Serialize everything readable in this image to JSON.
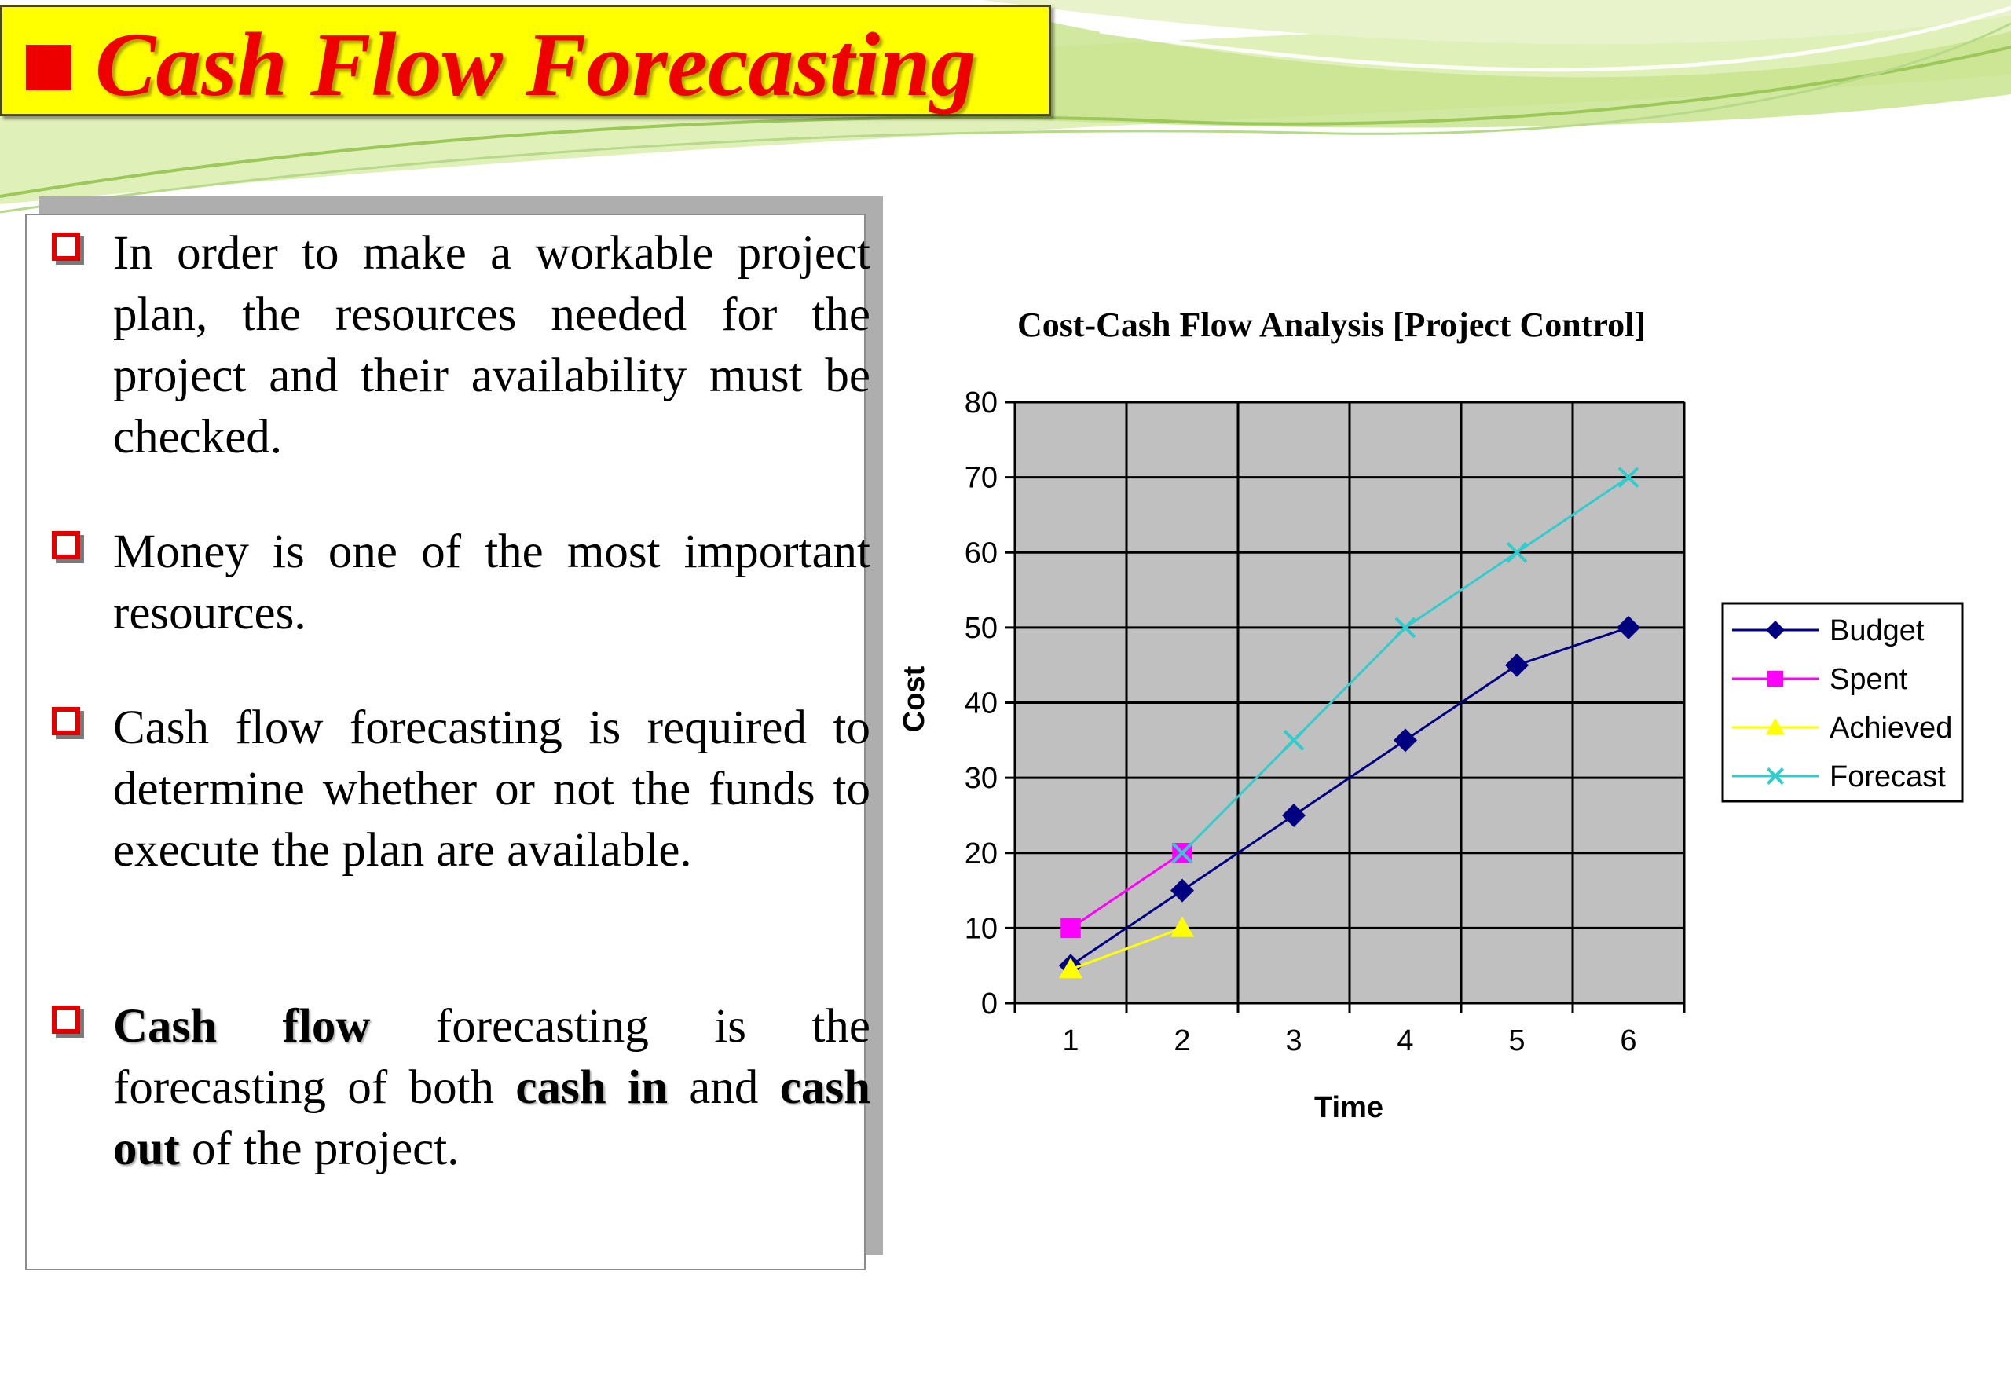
{
  "slide": {
    "title": "Cash Flow Forecasting",
    "bullets": [
      {
        "parts": [
          {
            "t": "In order to make a workable project plan, the resources needed for the project and their availability must be checked.",
            "b": false
          }
        ]
      },
      {
        "parts": [
          {
            "t": "Money is one of the most important resources.",
            "b": false
          }
        ]
      },
      {
        "parts": [
          {
            "t": "Cash flow forecasting is required to determine whether or not the funds to execute the plan are available.",
            "b": false
          }
        ]
      },
      {
        "parts": [
          {
            "t": "Cash flow",
            "b": true
          },
          {
            "t": " forecasting is the forecasting of both ",
            "b": false
          },
          {
            "t": "cash in",
            "b": true
          },
          {
            "t": " and ",
            "b": false
          },
          {
            "t": "cash out",
            "b": true
          },
          {
            "t": " of the project.",
            "b": false
          }
        ]
      }
    ]
  },
  "colors": {
    "title_background": "#ffff00",
    "title_text": "#ee0000",
    "bullet_marker": "#e00000",
    "plot_background": "#c0c0c0"
  },
  "chart_data": {
    "type": "line",
    "title": "Cost-Cash Flow Analysis [Project Control]",
    "xlabel": "Time",
    "ylabel": "Cost",
    "x": [
      1,
      2,
      3,
      4,
      5,
      6
    ],
    "ylim": [
      0,
      80
    ],
    "yticks": [
      0,
      10,
      20,
      30,
      40,
      50,
      60,
      70,
      80
    ],
    "grid": true,
    "legend_position": "right",
    "series": [
      {
        "name": "Budget",
        "x": [
          1,
          2,
          3,
          4,
          5,
          6
        ],
        "values": [
          5,
          15,
          25,
          35,
          45,
          50
        ],
        "color": "#000080",
        "marker": "diamond"
      },
      {
        "name": "Spent",
        "x": [
          1,
          2
        ],
        "values": [
          10,
          20
        ],
        "color": "#ff00ff",
        "marker": "square"
      },
      {
        "name": "Achieved",
        "x": [
          1,
          2
        ],
        "values": [
          4.5,
          10
        ],
        "color": "#ffff00",
        "marker": "triangle"
      },
      {
        "name": "Forecast",
        "x": [
          2,
          3,
          4,
          5,
          6
        ],
        "values": [
          20,
          35,
          50,
          60,
          70
        ],
        "color": "#33cccc",
        "marker": "x"
      }
    ]
  }
}
